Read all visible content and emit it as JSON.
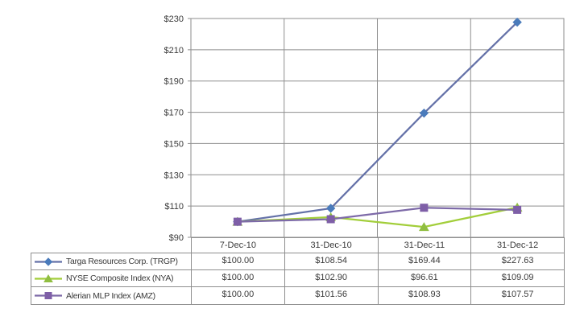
{
  "chart_data": {
    "type": "line",
    "x_categories": [
      "7-Dec-10",
      "31-Dec-10",
      "31-Dec-11",
      "31-Dec-12"
    ],
    "yticks": [
      "$90",
      "$110",
      "$130",
      "$150",
      "$170",
      "$190",
      "$210",
      "$230"
    ],
    "ylim": [
      90,
      230
    ],
    "ytick_step": 20,
    "grid": true,
    "legend_position": "left-of-attached-data-table",
    "colors": {
      "grid": "#8e8e8e",
      "text": "#3a3a3a",
      "background": "#ffffff"
    },
    "series": [
      {
        "name": "Targa Resources Corp. (TRGP)",
        "marker": "diamond",
        "line_color": "#6471a8",
        "marker_color": "#4a7bbb",
        "values": [
          100.0,
          108.54,
          169.44,
          227.63
        ]
      },
      {
        "name": "NYSE Composite Index (NYA)",
        "marker": "triangle",
        "line_color": "#a2ce3a",
        "marker_color": "#90be41",
        "values": [
          100.0,
          102.9,
          96.61,
          109.09
        ]
      },
      {
        "name": "Alerian MLP Index (AMZ)",
        "marker": "square",
        "line_color": "#7d6aa8",
        "marker_color": "#7e5fa7",
        "values": [
          100.0,
          101.56,
          108.93,
          107.57
        ]
      }
    ]
  },
  "table": {
    "columns": [
      "7-Dec-10",
      "31-Dec-10",
      "31-Dec-11",
      "31-Dec-12"
    ],
    "rows": [
      {
        "label": "Targa Resources Corp. (TRGP)",
        "values": [
          "$100.00",
          "$108.54",
          "$169.44",
          "$227.63"
        ]
      },
      {
        "label": "NYSE Composite Index (NYA)",
        "values": [
          "$100.00",
          "$102.90",
          "$96.61",
          "$109.09"
        ]
      },
      {
        "label": "Alerian MLP Index (AMZ)",
        "values": [
          "$100.00",
          "$101.56",
          "$108.93",
          "$107.57"
        ]
      }
    ]
  }
}
